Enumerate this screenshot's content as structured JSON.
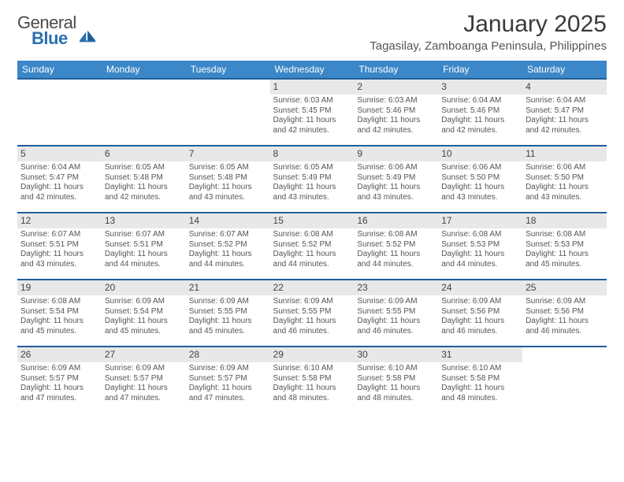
{
  "brand": {
    "line1": "General",
    "line2": "Blue"
  },
  "title": "January 2025",
  "location": "Tagasilay, Zamboanga Peninsula, Philippines",
  "colors": {
    "header_blue": "#3b87c8",
    "row_divider": "#1f5f99",
    "date_bg": "#e8e8e8",
    "text": "#333333",
    "muted": "#555555",
    "page_bg": "#ffffff"
  },
  "dayNames": [
    "Sunday",
    "Monday",
    "Tuesday",
    "Wednesday",
    "Thursday",
    "Friday",
    "Saturday"
  ],
  "weeks": [
    [
      null,
      null,
      null,
      {
        "d": "1",
        "sr": "6:03 AM",
        "ss": "5:45 PM",
        "dl": "11 hours and 42 minutes."
      },
      {
        "d": "2",
        "sr": "6:03 AM",
        "ss": "5:46 PM",
        "dl": "11 hours and 42 minutes."
      },
      {
        "d": "3",
        "sr": "6:04 AM",
        "ss": "5:46 PM",
        "dl": "11 hours and 42 minutes."
      },
      {
        "d": "4",
        "sr": "6:04 AM",
        "ss": "5:47 PM",
        "dl": "11 hours and 42 minutes."
      }
    ],
    [
      {
        "d": "5",
        "sr": "6:04 AM",
        "ss": "5:47 PM",
        "dl": "11 hours and 42 minutes."
      },
      {
        "d": "6",
        "sr": "6:05 AM",
        "ss": "5:48 PM",
        "dl": "11 hours and 42 minutes."
      },
      {
        "d": "7",
        "sr": "6:05 AM",
        "ss": "5:48 PM",
        "dl": "11 hours and 43 minutes."
      },
      {
        "d": "8",
        "sr": "6:05 AM",
        "ss": "5:49 PM",
        "dl": "11 hours and 43 minutes."
      },
      {
        "d": "9",
        "sr": "6:06 AM",
        "ss": "5:49 PM",
        "dl": "11 hours and 43 minutes."
      },
      {
        "d": "10",
        "sr": "6:06 AM",
        "ss": "5:50 PM",
        "dl": "11 hours and 43 minutes."
      },
      {
        "d": "11",
        "sr": "6:06 AM",
        "ss": "5:50 PM",
        "dl": "11 hours and 43 minutes."
      }
    ],
    [
      {
        "d": "12",
        "sr": "6:07 AM",
        "ss": "5:51 PM",
        "dl": "11 hours and 43 minutes."
      },
      {
        "d": "13",
        "sr": "6:07 AM",
        "ss": "5:51 PM",
        "dl": "11 hours and 44 minutes."
      },
      {
        "d": "14",
        "sr": "6:07 AM",
        "ss": "5:52 PM",
        "dl": "11 hours and 44 minutes."
      },
      {
        "d": "15",
        "sr": "6:08 AM",
        "ss": "5:52 PM",
        "dl": "11 hours and 44 minutes."
      },
      {
        "d": "16",
        "sr": "6:08 AM",
        "ss": "5:52 PM",
        "dl": "11 hours and 44 minutes."
      },
      {
        "d": "17",
        "sr": "6:08 AM",
        "ss": "5:53 PM",
        "dl": "11 hours and 44 minutes."
      },
      {
        "d": "18",
        "sr": "6:08 AM",
        "ss": "5:53 PM",
        "dl": "11 hours and 45 minutes."
      }
    ],
    [
      {
        "d": "19",
        "sr": "6:08 AM",
        "ss": "5:54 PM",
        "dl": "11 hours and 45 minutes."
      },
      {
        "d": "20",
        "sr": "6:09 AM",
        "ss": "5:54 PM",
        "dl": "11 hours and 45 minutes."
      },
      {
        "d": "21",
        "sr": "6:09 AM",
        "ss": "5:55 PM",
        "dl": "11 hours and 45 minutes."
      },
      {
        "d": "22",
        "sr": "6:09 AM",
        "ss": "5:55 PM",
        "dl": "11 hours and 46 minutes."
      },
      {
        "d": "23",
        "sr": "6:09 AM",
        "ss": "5:55 PM",
        "dl": "11 hours and 46 minutes."
      },
      {
        "d": "24",
        "sr": "6:09 AM",
        "ss": "5:56 PM",
        "dl": "11 hours and 46 minutes."
      },
      {
        "d": "25",
        "sr": "6:09 AM",
        "ss": "5:56 PM",
        "dl": "11 hours and 46 minutes."
      }
    ],
    [
      {
        "d": "26",
        "sr": "6:09 AM",
        "ss": "5:57 PM",
        "dl": "11 hours and 47 minutes."
      },
      {
        "d": "27",
        "sr": "6:09 AM",
        "ss": "5:57 PM",
        "dl": "11 hours and 47 minutes."
      },
      {
        "d": "28",
        "sr": "6:09 AM",
        "ss": "5:57 PM",
        "dl": "11 hours and 47 minutes."
      },
      {
        "d": "29",
        "sr": "6:10 AM",
        "ss": "5:58 PM",
        "dl": "11 hours and 48 minutes."
      },
      {
        "d": "30",
        "sr": "6:10 AM",
        "ss": "5:58 PM",
        "dl": "11 hours and 48 minutes."
      },
      {
        "d": "31",
        "sr": "6:10 AM",
        "ss": "5:58 PM",
        "dl": "11 hours and 48 minutes."
      },
      null
    ]
  ],
  "labels": {
    "sunrise": "Sunrise:",
    "sunset": "Sunset:",
    "daylight": "Daylight:"
  }
}
